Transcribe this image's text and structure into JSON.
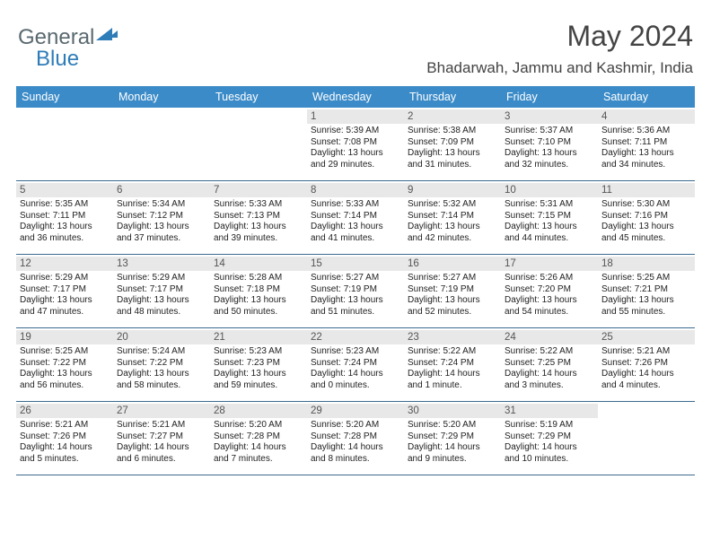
{
  "logo": {
    "text1": "General",
    "text2": "Blue"
  },
  "title": "May 2024",
  "location": "Bhadarwah, Jammu and Kashmir, India",
  "weekdays": [
    "Sunday",
    "Monday",
    "Tuesday",
    "Wednesday",
    "Thursday",
    "Friday",
    "Saturday"
  ],
  "colors": {
    "header_bg": "#3b8bc8",
    "header_text": "#ffffff",
    "daynum_bg": "#e8e8e8",
    "row_border": "#3b6b8f",
    "text": "#222222"
  },
  "fonts": {
    "title_size": 32,
    "location_size": 17,
    "weekday_size": 12.5,
    "daynum_size": 11.5,
    "body_size": 10
  },
  "blank_leading": 3,
  "days": [
    {
      "n": "1",
      "sr": "5:39 AM",
      "ss": "7:08 PM",
      "dl": "13 hours and 29 minutes."
    },
    {
      "n": "2",
      "sr": "5:38 AM",
      "ss": "7:09 PM",
      "dl": "13 hours and 31 minutes."
    },
    {
      "n": "3",
      "sr": "5:37 AM",
      "ss": "7:10 PM",
      "dl": "13 hours and 32 minutes."
    },
    {
      "n": "4",
      "sr": "5:36 AM",
      "ss": "7:11 PM",
      "dl": "13 hours and 34 minutes."
    },
    {
      "n": "5",
      "sr": "5:35 AM",
      "ss": "7:11 PM",
      "dl": "13 hours and 36 minutes."
    },
    {
      "n": "6",
      "sr": "5:34 AM",
      "ss": "7:12 PM",
      "dl": "13 hours and 37 minutes."
    },
    {
      "n": "7",
      "sr": "5:33 AM",
      "ss": "7:13 PM",
      "dl": "13 hours and 39 minutes."
    },
    {
      "n": "8",
      "sr": "5:33 AM",
      "ss": "7:14 PM",
      "dl": "13 hours and 41 minutes."
    },
    {
      "n": "9",
      "sr": "5:32 AM",
      "ss": "7:14 PM",
      "dl": "13 hours and 42 minutes."
    },
    {
      "n": "10",
      "sr": "5:31 AM",
      "ss": "7:15 PM",
      "dl": "13 hours and 44 minutes."
    },
    {
      "n": "11",
      "sr": "5:30 AM",
      "ss": "7:16 PM",
      "dl": "13 hours and 45 minutes."
    },
    {
      "n": "12",
      "sr": "5:29 AM",
      "ss": "7:17 PM",
      "dl": "13 hours and 47 minutes."
    },
    {
      "n": "13",
      "sr": "5:29 AM",
      "ss": "7:17 PM",
      "dl": "13 hours and 48 minutes."
    },
    {
      "n": "14",
      "sr": "5:28 AM",
      "ss": "7:18 PM",
      "dl": "13 hours and 50 minutes."
    },
    {
      "n": "15",
      "sr": "5:27 AM",
      "ss": "7:19 PM",
      "dl": "13 hours and 51 minutes."
    },
    {
      "n": "16",
      "sr": "5:27 AM",
      "ss": "7:19 PM",
      "dl": "13 hours and 52 minutes."
    },
    {
      "n": "17",
      "sr": "5:26 AM",
      "ss": "7:20 PM",
      "dl": "13 hours and 54 minutes."
    },
    {
      "n": "18",
      "sr": "5:25 AM",
      "ss": "7:21 PM",
      "dl": "13 hours and 55 minutes."
    },
    {
      "n": "19",
      "sr": "5:25 AM",
      "ss": "7:22 PM",
      "dl": "13 hours and 56 minutes."
    },
    {
      "n": "20",
      "sr": "5:24 AM",
      "ss": "7:22 PM",
      "dl": "13 hours and 58 minutes."
    },
    {
      "n": "21",
      "sr": "5:23 AM",
      "ss": "7:23 PM",
      "dl": "13 hours and 59 minutes."
    },
    {
      "n": "22",
      "sr": "5:23 AM",
      "ss": "7:24 PM",
      "dl": "14 hours and 0 minutes."
    },
    {
      "n": "23",
      "sr": "5:22 AM",
      "ss": "7:24 PM",
      "dl": "14 hours and 1 minute."
    },
    {
      "n": "24",
      "sr": "5:22 AM",
      "ss": "7:25 PM",
      "dl": "14 hours and 3 minutes."
    },
    {
      "n": "25",
      "sr": "5:21 AM",
      "ss": "7:26 PM",
      "dl": "14 hours and 4 minutes."
    },
    {
      "n": "26",
      "sr": "5:21 AM",
      "ss": "7:26 PM",
      "dl": "14 hours and 5 minutes."
    },
    {
      "n": "27",
      "sr": "5:21 AM",
      "ss": "7:27 PM",
      "dl": "14 hours and 6 minutes."
    },
    {
      "n": "28",
      "sr": "5:20 AM",
      "ss": "7:28 PM",
      "dl": "14 hours and 7 minutes."
    },
    {
      "n": "29",
      "sr": "5:20 AM",
      "ss": "7:28 PM",
      "dl": "14 hours and 8 minutes."
    },
    {
      "n": "30",
      "sr": "5:20 AM",
      "ss": "7:29 PM",
      "dl": "14 hours and 9 minutes."
    },
    {
      "n": "31",
      "sr": "5:19 AM",
      "ss": "7:29 PM",
      "dl": "14 hours and 10 minutes."
    }
  ]
}
